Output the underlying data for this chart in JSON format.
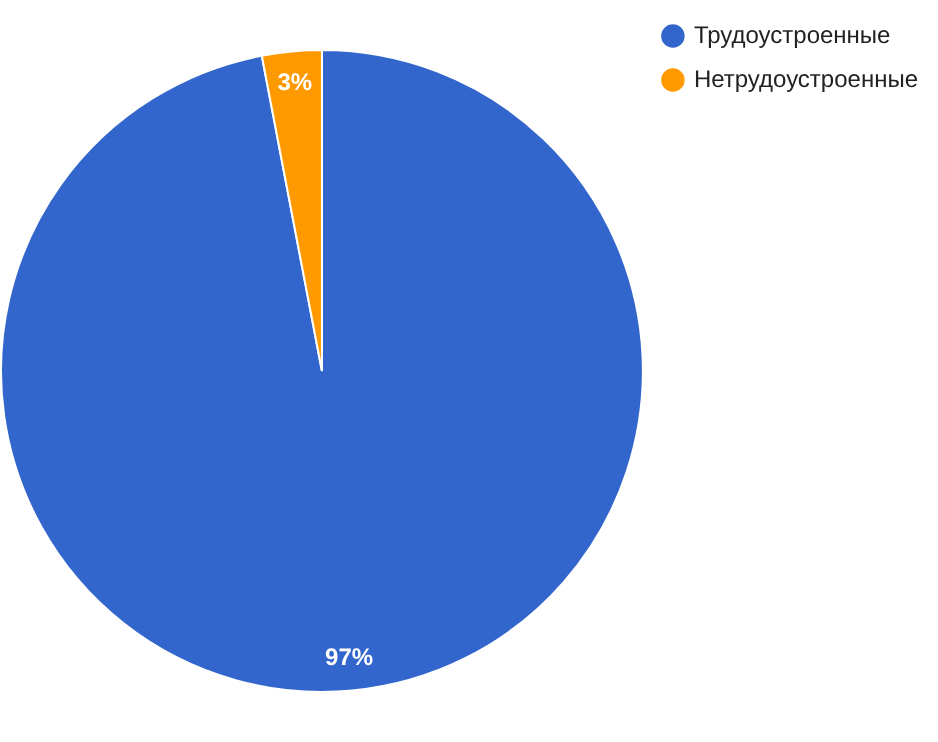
{
  "chart_data": {
    "type": "pie",
    "categories": [
      "Трудоустроенные",
      "Нетрудоустроенные"
    ],
    "values": [
      97,
      3
    ],
    "colors": [
      "#3366cc",
      "#ff9900"
    ],
    "value_labels": [
      "97%",
      "3%"
    ],
    "legend": "top right"
  }
}
